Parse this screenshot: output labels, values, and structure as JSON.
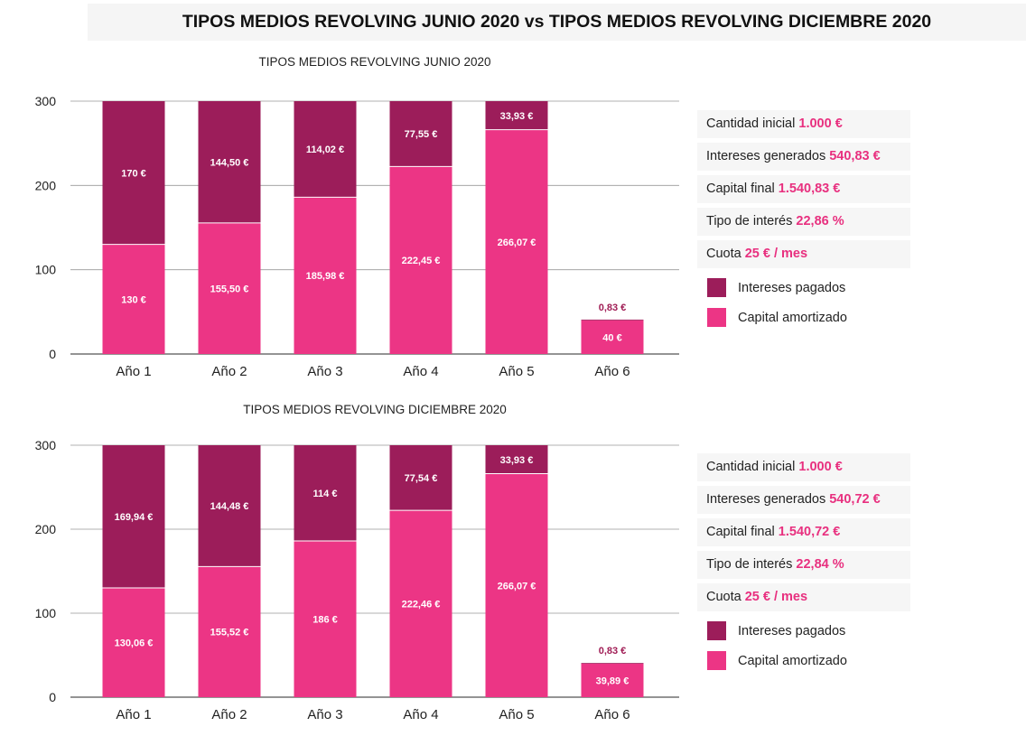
{
  "page_title": "TIPOS MEDIOS REVOLVING JUNIO 2020 vs TIPOS MEDIOS REVOLVING DICIEMBRE 2020",
  "colors": {
    "intereses": "#9c1d5a",
    "capital": "#ec3585",
    "accent_text": "#e8307f"
  },
  "charts": [
    {
      "title": "TIPOS MEDIOS REVOLVING JUNIO 2020",
      "info": [
        {
          "label": "Cantidad inicial",
          "value": "1.000 €"
        },
        {
          "label": "Intereses generados",
          "value": "540,83 €"
        },
        {
          "label": "Capital final",
          "value": "1.540,83 €"
        },
        {
          "label": "Tipo de interés",
          "value": "22,86 %"
        },
        {
          "label": "Cuota",
          "value": "25 € / mes"
        }
      ],
      "legend": [
        "Intereses pagados",
        "Capital amortizado"
      ]
    },
    {
      "title": "TIPOS MEDIOS REVOLVING DICIEMBRE 2020",
      "info": [
        {
          "label": "Cantidad inicial",
          "value": "1.000 €"
        },
        {
          "label": "Intereses generados",
          "value": "540,72 €"
        },
        {
          "label": "Capital final",
          "value": "1.540,72 €"
        },
        {
          "label": "Tipo de interés",
          "value": "22,84 %"
        },
        {
          "label": "Cuota",
          "value": "25 € / mes"
        }
      ],
      "legend": [
        "Intereses pagados",
        "Capital amortizado"
      ]
    }
  ],
  "chart_data": [
    {
      "type": "bar",
      "stacked": true,
      "title": "TIPOS MEDIOS REVOLVING JUNIO 2020",
      "categories": [
        "Año 1",
        "Año 2",
        "Año 3",
        "Año 4",
        "Año 5",
        "Año 6"
      ],
      "ylim": [
        0,
        300
      ],
      "yticks": [
        0,
        100,
        200,
        300
      ],
      "grid": true,
      "series": [
        {
          "name": "Capital amortizado",
          "values": [
            130,
            155.5,
            185.98,
            222.45,
            266.07,
            40
          ],
          "labels": [
            "130 €",
            "155,50 €",
            "185,98 €",
            "222,45 €",
            "266,07 €",
            "40 €"
          ]
        },
        {
          "name": "Intereses pagados",
          "values": [
            170,
            144.5,
            114.02,
            77.55,
            33.93,
            0.83
          ],
          "labels": [
            "170 €",
            "144,50 €",
            "114,02 €",
            "77,55 €",
            "33,93 €",
            "0,83 €"
          ]
        }
      ]
    },
    {
      "type": "bar",
      "stacked": true,
      "title": "TIPOS MEDIOS REVOLVING DICIEMBRE 2020",
      "categories": [
        "Año 1",
        "Año 2",
        "Año 3",
        "Año 4",
        "Año 5",
        "Año 6"
      ],
      "ylim": [
        0,
        300
      ],
      "yticks": [
        0,
        100,
        200,
        300
      ],
      "grid": true,
      "series": [
        {
          "name": "Capital amortizado",
          "values": [
            130.06,
            155.52,
            186,
            222.46,
            266.07,
            39.89
          ],
          "labels": [
            "130,06 €",
            "155,52 €",
            "186 €",
            "222,46 €",
            "266,07 €",
            "39,89 €"
          ]
        },
        {
          "name": "Intereses pagados",
          "values": [
            169.94,
            144.48,
            114,
            77.54,
            33.93,
            0.83
          ],
          "labels": [
            "169,94 €",
            "144,48 €",
            "114 €",
            "77,54 €",
            "33,93 €",
            "0,83 €"
          ]
        }
      ]
    }
  ]
}
